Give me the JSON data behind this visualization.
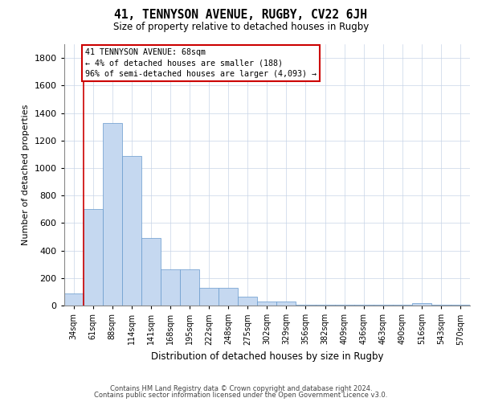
{
  "title_line1": "41, TENNYSON AVENUE, RUGBY, CV22 6JH",
  "title_line2": "Size of property relative to detached houses in Rugby",
  "xlabel": "Distribution of detached houses by size in Rugby",
  "ylabel": "Number of detached properties",
  "categories": [
    "34sqm",
    "61sqm",
    "88sqm",
    "114sqm",
    "141sqm",
    "168sqm",
    "195sqm",
    "222sqm",
    "248sqm",
    "275sqm",
    "302sqm",
    "329sqm",
    "356sqm",
    "382sqm",
    "409sqm",
    "436sqm",
    "463sqm",
    "490sqm",
    "516sqm",
    "543sqm",
    "570sqm"
  ],
  "values": [
    90,
    700,
    1330,
    1090,
    490,
    265,
    265,
    130,
    130,
    65,
    30,
    30,
    5,
    5,
    5,
    5,
    5,
    5,
    20,
    5,
    5
  ],
  "bar_color": "#c5d8f0",
  "bar_edge_color": "#6699cc",
  "highlight_line_color": "#cc0000",
  "annotation_line1": "41 TENNYSON AVENUE: 68sqm",
  "annotation_line2": "← 4% of detached houses are smaller (188)",
  "annotation_line3": "96% of semi-detached houses are larger (4,093) →",
  "annotation_box_color": "#ffffff",
  "annotation_box_edge_color": "#cc0000",
  "ylim_max": 1900,
  "yticks": [
    0,
    200,
    400,
    600,
    800,
    1000,
    1200,
    1400,
    1600,
    1800
  ],
  "background_color": "#ffffff",
  "grid_color": "#c8d4e8",
  "footer_line1": "Contains HM Land Registry data © Crown copyright and database right 2024.",
  "footer_line2": "Contains public sector information licensed under the Open Government Licence v3.0."
}
